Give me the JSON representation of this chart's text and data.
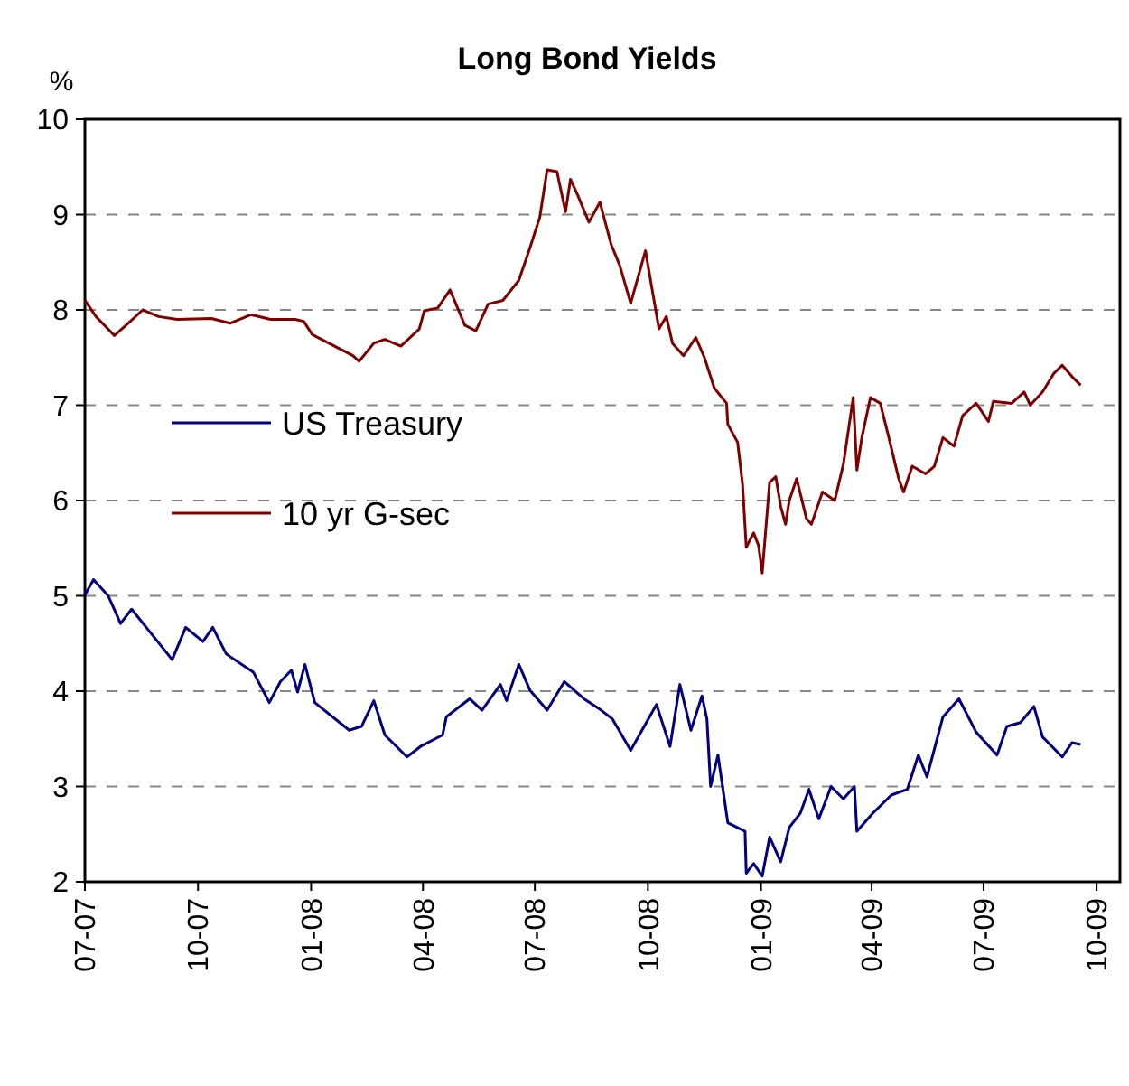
{
  "chart_data": {
    "type": "line",
    "title": "Long Bond Yields",
    "ylabel": "%",
    "xlim": [
      "2007-07-01",
      "2009-10-20"
    ],
    "ylim": [
      2,
      10
    ],
    "yticks": [
      2,
      3,
      4,
      5,
      6,
      7,
      8,
      9,
      10
    ],
    "xticks": [
      {
        "value": "2007-07-01",
        "label": "07-07"
      },
      {
        "value": "2007-10-01",
        "label": "10-07"
      },
      {
        "value": "2008-01-01",
        "label": "01-08"
      },
      {
        "value": "2008-04-01",
        "label": "04-08"
      },
      {
        "value": "2008-07-01",
        "label": "07-08"
      },
      {
        "value": "2008-10-01",
        "label": "10-08"
      },
      {
        "value": "2009-01-01",
        "label": "01-09"
      },
      {
        "value": "2009-04-01",
        "label": "04-09"
      },
      {
        "value": "2009-07-01",
        "label": "07-09"
      },
      {
        "value": "2009-10-01",
        "label": "10-09"
      }
    ],
    "grid": "y",
    "legend": "left",
    "line_style": "solid",
    "series": [
      {
        "name": "US Treasury",
        "color": "#000080",
        "x": [
          "2007-07-01",
          "2007-07-08",
          "2007-07-20",
          "2007-07-30",
          "2007-08-08",
          "2007-08-23",
          "2007-09-10",
          "2007-09-21",
          "2007-10-05",
          "2007-10-13",
          "2007-10-24",
          "2007-11-15",
          "2007-11-28",
          "2007-12-07",
          "2007-12-16",
          "2007-12-21",
          "2007-12-27",
          "2008-01-04",
          "2008-02-01",
          "2008-02-11",
          "2008-02-21",
          "2008-03-01",
          "2008-03-19",
          "2008-03-30",
          "2008-04-17",
          "2008-04-20",
          "2008-05-09",
          "2008-05-19",
          "2008-06-03",
          "2008-06-08",
          "2008-06-18",
          "2008-06-27",
          "2008-07-11",
          "2008-07-25",
          "2008-08-10",
          "2008-08-24",
          "2008-09-02",
          "2008-09-17",
          "2008-10-08",
          "2008-10-19",
          "2008-10-27",
          "2008-11-05",
          "2008-11-14",
          "2008-11-18",
          "2008-11-21",
          "2008-11-27",
          "2008-12-05",
          "2008-12-19",
          "2008-12-20",
          "2008-12-26",
          "2009-01-02",
          "2009-01-08",
          "2009-01-17",
          "2009-01-24",
          "2009-02-02",
          "2009-02-09",
          "2009-02-17",
          "2009-02-27",
          "2009-03-09",
          "2009-03-18",
          "2009-03-20",
          "2009-04-02",
          "2009-04-17",
          "2009-04-30",
          "2009-05-09",
          "2009-05-16",
          "2009-05-29",
          "2009-06-11",
          "2009-06-25",
          "2009-07-12",
          "2009-07-20",
          "2009-07-31",
          "2009-08-11",
          "2009-08-18",
          "2009-09-03",
          "2009-09-11",
          "2009-09-18"
        ],
        "values": [
          5.01,
          5.17,
          5.0,
          4.71,
          4.86,
          4.62,
          4.33,
          4.67,
          4.52,
          4.67,
          4.39,
          4.2,
          3.88,
          4.1,
          4.22,
          3.99,
          4.28,
          3.88,
          3.59,
          3.63,
          3.9,
          3.54,
          3.31,
          3.42,
          3.54,
          3.73,
          3.92,
          3.8,
          4.07,
          3.9,
          4.28,
          4.01,
          3.8,
          4.1,
          3.92,
          3.8,
          3.71,
          3.38,
          3.86,
          3.42,
          4.07,
          3.59,
          3.95,
          3.71,
          3.0,
          3.33,
          2.62,
          2.53,
          2.09,
          2.19,
          2.06,
          2.47,
          2.21,
          2.57,
          2.72,
          2.97,
          2.66,
          3.0,
          2.87,
          3.0,
          2.53,
          2.72,
          2.91,
          2.97,
          3.33,
          3.1,
          3.73,
          3.92,
          3.57,
          3.33,
          3.63,
          3.67,
          3.84,
          3.52,
          3.31,
          3.46,
          3.44
        ]
      },
      {
        "name": "10 yr G-sec",
        "color": "#800000",
        "x": [
          "2007-07-01",
          "2007-07-10",
          "2007-07-25",
          "2007-08-07",
          "2007-08-17",
          "2007-08-30",
          "2007-09-14",
          "2007-10-12",
          "2007-10-27",
          "2007-11-13",
          "2007-11-29",
          "2007-12-19",
          "2007-12-26",
          "2008-01-02",
          "2008-02-04",
          "2008-02-09",
          "2008-02-21",
          "2008-03-01",
          "2008-03-14",
          "2008-03-29",
          "2008-04-02",
          "2008-04-13",
          "2008-04-23",
          "2008-05-05",
          "2008-05-14",
          "2008-05-24",
          "2008-06-05",
          "2008-06-18",
          "2008-06-27",
          "2008-07-05",
          "2008-07-11",
          "2008-07-19",
          "2008-07-26",
          "2008-07-30",
          "2008-08-05",
          "2008-08-14",
          "2008-08-23",
          "2008-09-01",
          "2008-09-08",
          "2008-09-17",
          "2008-09-29",
          "2008-10-10",
          "2008-10-16",
          "2008-10-21",
          "2008-10-30",
          "2008-11-09",
          "2008-11-16",
          "2008-11-24",
          "2008-12-04",
          "2008-12-05",
          "2008-12-13",
          "2008-12-17",
          "2008-12-20",
          "2008-12-26",
          "2008-12-30",
          "2009-01-02",
          "2009-01-08",
          "2009-01-13",
          "2009-01-17",
          "2009-01-21",
          "2009-01-24",
          "2009-01-30",
          "2009-02-07",
          "2009-02-11",
          "2009-02-20",
          "2009-03-02",
          "2009-03-09",
          "2009-03-17",
          "2009-03-20",
          "2009-03-24",
          "2009-03-31",
          "2009-04-08",
          "2009-04-15",
          "2009-04-23",
          "2009-04-27",
          "2009-05-04",
          "2009-05-15",
          "2009-05-22",
          "2009-05-29",
          "2009-06-07",
          "2009-06-14",
          "2009-06-25",
          "2009-07-05",
          "2009-07-09",
          "2009-07-24",
          "2009-08-03",
          "2009-08-08",
          "2009-08-18",
          "2009-08-27",
          "2009-09-03",
          "2009-09-11",
          "2009-09-18"
        ],
        "values": [
          8.1,
          7.93,
          7.73,
          7.88,
          8.0,
          7.93,
          7.9,
          7.91,
          7.86,
          7.95,
          7.9,
          7.9,
          7.88,
          7.74,
          7.52,
          7.46,
          7.65,
          7.69,
          7.62,
          7.8,
          7.99,
          8.02,
          8.21,
          7.84,
          7.78,
          8.06,
          8.1,
          8.31,
          8.65,
          8.97,
          9.47,
          9.45,
          9.03,
          9.37,
          9.2,
          8.92,
          9.13,
          8.69,
          8.47,
          8.07,
          8.62,
          7.8,
          7.93,
          7.65,
          7.52,
          7.71,
          7.5,
          7.18,
          7.02,
          6.8,
          6.61,
          6.17,
          5.51,
          5.66,
          5.53,
          5.24,
          6.19,
          6.25,
          5.94,
          5.75,
          6.0,
          6.23,
          5.81,
          5.75,
          6.09,
          6.0,
          6.38,
          7.08,
          6.32,
          6.66,
          7.08,
          7.02,
          6.66,
          6.23,
          6.09,
          6.36,
          6.28,
          6.36,
          6.66,
          6.57,
          6.89,
          7.02,
          6.83,
          7.04,
          7.02,
          7.14,
          7.0,
          7.14,
          7.33,
          7.42,
          7.3,
          7.21
        ]
      }
    ]
  }
}
